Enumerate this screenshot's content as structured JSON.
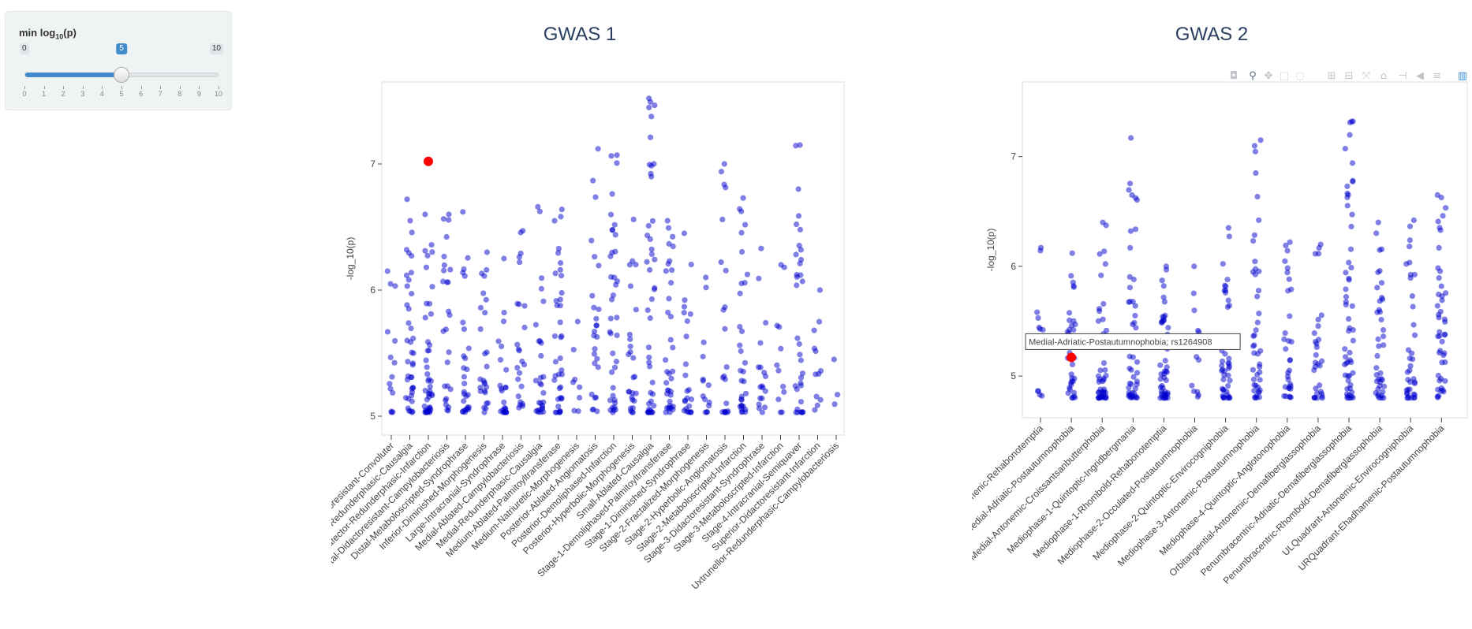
{
  "slider": {
    "label_main": "min log",
    "label_sub": "10",
    "label_tail": "(p)",
    "min": 0,
    "max": 10,
    "value": 5,
    "min_label": "0",
    "max_label": "10",
    "value_label": "5",
    "ticks": [
      "0",
      "1",
      "2",
      "3",
      "4",
      "5",
      "6",
      "7",
      "8",
      "9",
      "10"
    ]
  },
  "modebar": {
    "icons": [
      "camera-icon",
      "zoom-icon",
      "pan-icon",
      "box-select-icon",
      "lasso-icon",
      "zoom-in-icon",
      "zoom-out-icon",
      "autoscale-icon",
      "home-icon",
      "spike-icon",
      "hover-closest-icon",
      "hover-compare-icon",
      "plotly-logo-icon"
    ]
  },
  "colors": {
    "point": "#0000cd",
    "highlight": "#ff0000",
    "title": "#2a3f5f"
  },
  "chart_data": [
    {
      "type": "scatter",
      "title": "GWAS 1",
      "ylabel": "-log_10(p)",
      "ylim": [
        4.85,
        7.65
      ],
      "yticks": [
        5,
        6,
        7
      ],
      "grid": false,
      "categories": [
        "Anterior-Didactoresistant-Convoluter",
        "Culvintrafector-Redunderphasic-Causalgia",
        "Culvintrafector-Redunderphasic-Infarction",
        "Distal-Didactoresistant-Campylobacteriosis",
        "Distal-Metaboloscripted-Syndrophrase",
        "Inferior-Diminished-Morphogenesis",
        "Large-Intracranial-Syndrophrase",
        "Medial-Ablated-Campylobacteriosis",
        "Medial-Redunderphasic-Causalgia",
        "Medium-Ablated-Palmitoyltransferase",
        "Medium-Natriuretic-Morphogenesis",
        "Posterior-Ablated-Angiomatosis",
        "Posterior-Demoliphased-Infarction",
        "Posterior-Hyperbolic-Morphogenesis",
        "Small-Ablated-Causalgia",
        "Stage-1-Demoliphased-Palmitoyltransferase",
        "Stage-1-Diminished-Syndrophrase",
        "Stage-2-Fractalized-Morphogenesis",
        "Stage-2-Hyperbolic-Angiomatosis",
        "Stage-2-Metaboloscripted-Infarction",
        "Stage-3-Didactoresistant-Syndrophrase",
        "Stage-3-Metaboloscripted-Infarction",
        "Stage-4-Intracranial-Semiquaver",
        "Superior-Didactoresistant-Infarction",
        "Uxtrunellor-Redunderphasic-Campylobacteriosis"
      ],
      "series": [
        {
          "maxima": [
            6.15,
            6.72,
            6.6,
            6.6,
            6.62,
            6.3,
            6.25,
            6.47,
            6.66,
            6.64,
            5.75,
            7.12,
            7.07,
            6.56,
            7.52,
            6.55,
            6.45,
            6.1,
            7.0,
            6.73,
            6.33,
            6.2,
            7.15,
            6.0,
            5.45
          ],
          "counts": [
            14,
            40,
            45,
            26,
            28,
            26,
            24,
            24,
            28,
            38,
            8,
            26,
            38,
            26,
            44,
            36,
            24,
            14,
            22,
            32,
            18,
            12,
            34,
            12,
            3
          ]
        }
      ],
      "highlight": {
        "category_index": 2,
        "y": 7.02
      }
    },
    {
      "type": "scatter",
      "title": "GWAS 2",
      "ylabel": "-log_10(p)",
      "ylim": [
        4.62,
        7.68
      ],
      "yticks": [
        5,
        6,
        7
      ],
      "grid": false,
      "categories": [
        "LRQuadrant-Ehadhamenic-Rehabonotemptia",
        "Medial-Adriatic-Postautumnophobia",
        "Medial-Antonemic-Croissantsanbutterphobia",
        "Mediophase-1-Quintoptic-Ingridbergmania",
        "Mediophase-1-Rhombold-Rehabonotemptia",
        "Mediophase-2-Occulated-Postautumnophobia",
        "Mediophase-2-Quintoptic-Envirocogniphobia",
        "Mediophase-3-Antonemic-Postautumnophobia",
        "Mediophase-4-Quintoptic-Anglotonophobia",
        "Orbitangential-Antonemic-Demafiberglassophobia",
        "Penumbracentric-Adriatic-Demafiberglassophobia",
        "Penumbracentric-Rhombold-Demafiberglassophobia",
        "ULQuadrant-Antonemic-Envirocogniphobia",
        "URQuadrant-Ehadhamenic-Postautumnophobia"
      ],
      "series": [
        {
          "maxima": [
            6.17,
            6.12,
            6.4,
            7.17,
            6.0,
            6.0,
            6.35,
            7.15,
            6.22,
            6.2,
            7.32,
            6.4,
            6.42,
            6.65
          ],
          "counts": [
            12,
            34,
            44,
            46,
            50,
            12,
            46,
            44,
            32,
            30,
            56,
            40,
            38,
            46
          ]
        }
      ],
      "highlight": {
        "category_index": 1,
        "y": 5.17
      },
      "tooltip": "Medial-Adriatic-Postautumnophobia; rs1264908"
    }
  ]
}
